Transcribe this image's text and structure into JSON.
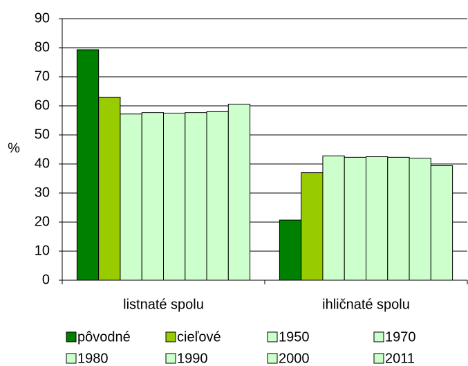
{
  "chart_data": {
    "type": "bar",
    "categories": [
      "listnaté spolu",
      "ihličnaté spolu"
    ],
    "ylabel": "%",
    "ylim": [
      0,
      90
    ],
    "yticks": [
      0,
      10,
      20,
      30,
      40,
      50,
      60,
      70,
      80,
      90
    ],
    "grid": true,
    "series": [
      {
        "name": "pôvodné",
        "color": "#008000",
        "values": [
          79.3,
          20.7
        ]
      },
      {
        "name": "cieľové",
        "color": "#99cc00",
        "values": [
          63.0,
          37.0
        ]
      },
      {
        "name": "1950",
        "color": "#ccffcc",
        "values": [
          57.2,
          42.8
        ]
      },
      {
        "name": "1970",
        "color": "#ccffcc",
        "values": [
          57.7,
          42.3
        ]
      },
      {
        "name": "1980",
        "color": "#ccffcc",
        "values": [
          57.5,
          42.5
        ]
      },
      {
        "name": "1990",
        "color": "#ccffcc",
        "values": [
          57.7,
          42.3
        ]
      },
      {
        "name": "2000",
        "color": "#ccffcc",
        "values": [
          58.0,
          42.0
        ]
      },
      {
        "name": "2011",
        "color": "#ccffcc",
        "values": [
          60.6,
          39.4
        ]
      }
    ]
  }
}
